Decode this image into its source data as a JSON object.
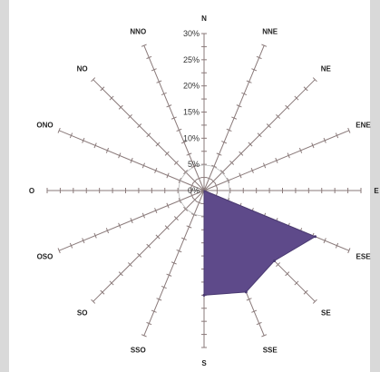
{
  "chart_data": {
    "type": "radar",
    "directions": [
      "N",
      "NNE",
      "NE",
      "ENE",
      "E",
      "ESE",
      "SE",
      "SSE",
      "S",
      "SSO",
      "SO",
      "OSO",
      "O",
      "ONO",
      "NO",
      "NNO"
    ],
    "values": [
      0,
      0,
      0,
      0,
      0,
      23,
      19,
      21,
      20,
      0,
      0,
      0,
      0,
      0,
      0,
      0
    ],
    "r_ticks": [
      "0%",
      "5%",
      "10%",
      "15%",
      "20%",
      "25%",
      "30%"
    ],
    "r_max": 30,
    "series": [
      {
        "values": [
          0,
          0,
          0,
          0,
          0,
          23,
          19,
          21,
          20,
          0,
          0,
          0,
          0,
          0,
          0,
          0
        ]
      }
    ],
    "fill_color": "#5e4a8a",
    "spoke_color": "#8a7a7a",
    "inner_ring": true
  }
}
